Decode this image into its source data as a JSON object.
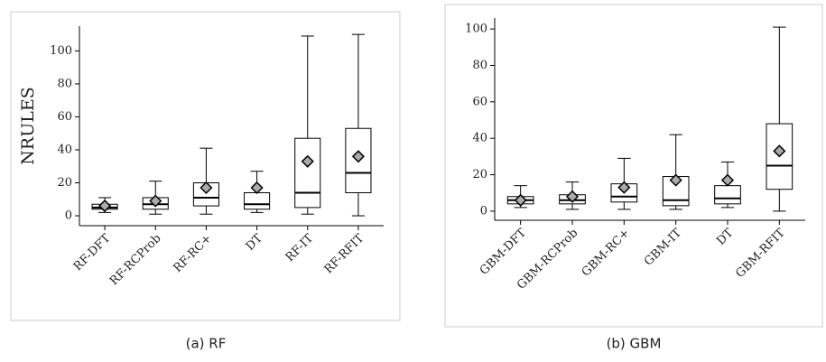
{
  "chart_data": [
    {
      "type": "box",
      "caption": "(a) RF",
      "ylabel": "NRULES",
      "categories": [
        "RF-DFT",
        "RF-RCProb",
        "RF-RC+",
        "DT",
        "RF-IT",
        "RF-RFIT"
      ],
      "whislo": [
        2,
        1,
        1,
        2,
        1,
        0
      ],
      "q1": [
        4,
        4,
        6,
        4,
        5,
        14
      ],
      "med": [
        5,
        7,
        11,
        7,
        14,
        26
      ],
      "q3": [
        7,
        11,
        20,
        14,
        47,
        53
      ],
      "whishi": [
        11,
        21,
        41,
        27,
        109,
        110
      ],
      "mean": [
        6,
        9,
        17,
        17,
        33,
        36
      ],
      "ylim": [
        -6,
        115
      ],
      "yticks": [
        0,
        20,
        40,
        60,
        80,
        100
      ]
    },
    {
      "type": "box",
      "caption": "(b) GBM",
      "categories": [
        "GBM-DFT",
        "GBM-RCProb",
        "GBM-RC+",
        "GBM-IT",
        "DT",
        "GBM-RFIT"
      ],
      "whislo": [
        2,
        1,
        1,
        1,
        2,
        0
      ],
      "q1": [
        4,
        4,
        5,
        3,
        4,
        12
      ],
      "med": [
        6,
        6,
        8,
        6,
        7,
        25
      ],
      "q3": [
        8,
        9,
        15,
        19,
        14,
        48
      ],
      "whishi": [
        14,
        16,
        29,
        42,
        27,
        101
      ],
      "mean": [
        6,
        8,
        13,
        17,
        17,
        33
      ],
      "ylim": [
        -5,
        106
      ],
      "yticks": [
        0,
        20,
        40,
        60,
        80,
        100
      ]
    }
  ]
}
